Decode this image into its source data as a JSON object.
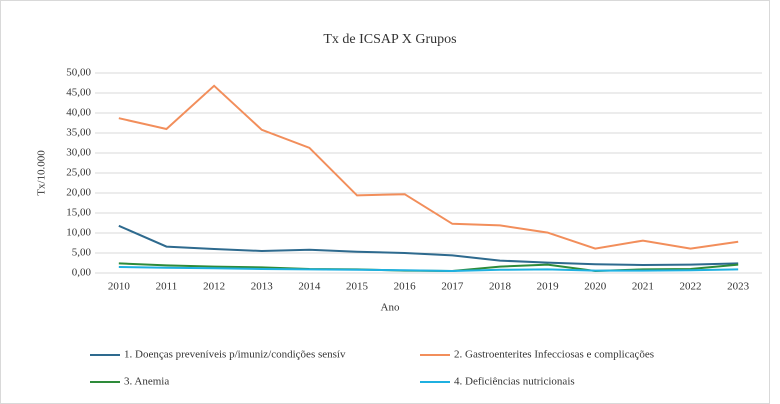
{
  "chart_data": {
    "type": "line",
    "title": "Tx de ICSAP X Grupos",
    "x_label": "Ano",
    "y_label": "Tx/10.000",
    "categories": [
      "2010",
      "2011",
      "2012",
      "2013",
      "2014",
      "2015",
      "2016",
      "2017",
      "2018",
      "2019",
      "2020",
      "2021",
      "2022",
      "2023"
    ],
    "series": [
      {
        "name": "1. Doenças preveníveis p/imuniz/condições sensív",
        "color": "#2e6a8e",
        "values": [
          11.8,
          6.6,
          6.0,
          5.5,
          5.8,
          5.3,
          5.0,
          4.4,
          3.1,
          2.6,
          2.2,
          2.0,
          2.1,
          2.4
        ]
      },
      {
        "name": "2. Gastroenterites Infecciosas e complicações",
        "color": "#f28e5b",
        "values": [
          38.7,
          36.0,
          46.8,
          35.8,
          31.3,
          19.4,
          19.7,
          12.3,
          11.9,
          10.1,
          6.1,
          8.1,
          6.1,
          7.8
        ]
      },
      {
        "name": "3. Anemia",
        "color": "#2e8b3a",
        "values": [
          2.4,
          1.9,
          1.6,
          1.4,
          1.0,
          0.9,
          0.6,
          0.5,
          1.6,
          2.1,
          0.5,
          0.9,
          1.0,
          2.1
        ]
      },
      {
        "name": "4. Deficiências nutricionais",
        "color": "#1fb0e0",
        "values": [
          1.5,
          1.3,
          1.2,
          1.0,
          0.9,
          0.8,
          0.7,
          0.5,
          0.8,
          0.9,
          0.6,
          0.6,
          0.7,
          0.9
        ]
      }
    ],
    "ylim": [
      0,
      50
    ],
    "yticks": [
      {
        "value": 0,
        "label": "0,00"
      },
      {
        "value": 5,
        "label": "5,00"
      },
      {
        "value": 10,
        "label": "10,00"
      },
      {
        "value": 15,
        "label": "15,00"
      },
      {
        "value": 20,
        "label": "20,00"
      },
      {
        "value": 25,
        "label": "25,00"
      },
      {
        "value": 30,
        "label": "30,00"
      },
      {
        "value": 35,
        "label": "35,00"
      },
      {
        "value": 40,
        "label": "40,00"
      },
      {
        "value": 45,
        "label": "45,00"
      },
      {
        "value": 50,
        "label": "50,00"
      }
    ],
    "grid": true
  }
}
